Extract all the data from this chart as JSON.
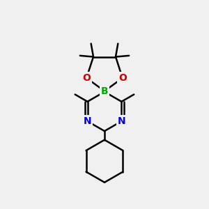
{
  "background_color": "#f0f0f0",
  "bond_color": "#000000",
  "N_color": "#0000dd",
  "O_color": "#cc0000",
  "B_color": "#00aa00",
  "line_width": 1.8,
  "font_size_atom": 10,
  "figure_size": [
    3.0,
    3.0
  ],
  "dpi": 100,
  "xlim": [
    0.15,
    0.85
  ],
  "ylim": [
    0.05,
    0.95
  ]
}
